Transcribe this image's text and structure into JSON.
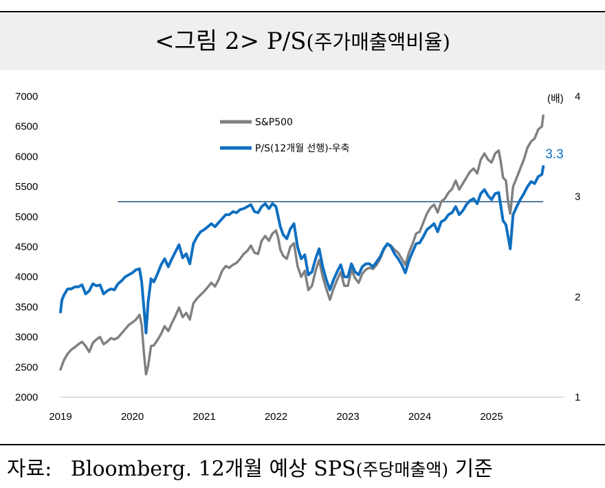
{
  "title": {
    "main": "<그림 2> P/S",
    "sub": "(주가매출액비율)"
  },
  "source": {
    "label": "자료:",
    "text": "Bloomberg. 12개월 예상 SPS",
    "sub": "(주당매출액)",
    "tail": " 기준"
  },
  "colors": {
    "sp500": "#808080",
    "ps": "#0f6fc0",
    "refline": "#1f4e79",
    "title_bg": "#efefef"
  },
  "chart_data": {
    "type": "line",
    "x_ticks": [
      "2019",
      "2020",
      "2021",
      "2022",
      "2023",
      "2024",
      "2025"
    ],
    "y_left": {
      "ticks": [
        2000,
        2500,
        3000,
        3500,
        4000,
        4500,
        5000,
        5500,
        6000,
        6500,
        7000
      ],
      "range": [
        2000,
        7000
      ]
    },
    "y_right": {
      "ticks": [
        1,
        2,
        3,
        4
      ],
      "range": [
        1,
        4
      ],
      "unit": "(배)"
    },
    "reference_line": {
      "axis": "right",
      "value": 2.95,
      "x_start": 2019.8,
      "x_end": 2025.72
    },
    "last_value_label": "3.3",
    "legend": {
      "position": "top-center"
    },
    "series": [
      {
        "name": "S&P500",
        "axis": "left",
        "color": "#808080",
        "points": [
          [
            2019.0,
            2460
          ],
          [
            2019.05,
            2620
          ],
          [
            2019.1,
            2720
          ],
          [
            2019.15,
            2790
          ],
          [
            2019.2,
            2830
          ],
          [
            2019.25,
            2880
          ],
          [
            2019.3,
            2920
          ],
          [
            2019.35,
            2850
          ],
          [
            2019.4,
            2750
          ],
          [
            2019.45,
            2900
          ],
          [
            2019.5,
            2960
          ],
          [
            2019.55,
            3000
          ],
          [
            2019.6,
            2880
          ],
          [
            2019.65,
            2920
          ],
          [
            2019.7,
            2980
          ],
          [
            2019.75,
            2960
          ],
          [
            2019.8,
            2990
          ],
          [
            2019.85,
            3060
          ],
          [
            2019.9,
            3130
          ],
          [
            2019.95,
            3200
          ],
          [
            2020.0,
            3240
          ],
          [
            2020.05,
            3290
          ],
          [
            2020.1,
            3370
          ],
          [
            2020.13,
            3200
          ],
          [
            2020.16,
            2750
          ],
          [
            2020.19,
            2380
          ],
          [
            2020.22,
            2520
          ],
          [
            2020.26,
            2850
          ],
          [
            2020.3,
            2860
          ],
          [
            2020.35,
            2950
          ],
          [
            2020.4,
            3050
          ],
          [
            2020.45,
            3180
          ],
          [
            2020.5,
            3100
          ],
          [
            2020.55,
            3230
          ],
          [
            2020.6,
            3350
          ],
          [
            2020.65,
            3490
          ],
          [
            2020.7,
            3330
          ],
          [
            2020.75,
            3400
          ],
          [
            2020.8,
            3290
          ],
          [
            2020.85,
            3560
          ],
          [
            2020.9,
            3640
          ],
          [
            2020.95,
            3700
          ],
          [
            2021.0,
            3760
          ],
          [
            2021.05,
            3830
          ],
          [
            2021.1,
            3900
          ],
          [
            2021.15,
            3840
          ],
          [
            2021.2,
            3950
          ],
          [
            2021.25,
            4100
          ],
          [
            2021.3,
            4180
          ],
          [
            2021.35,
            4150
          ],
          [
            2021.4,
            4200
          ],
          [
            2021.45,
            4230
          ],
          [
            2021.5,
            4300
          ],
          [
            2021.55,
            4380
          ],
          [
            2021.6,
            4430
          ],
          [
            2021.65,
            4520
          ],
          [
            2021.7,
            4400
          ],
          [
            2021.75,
            4380
          ],
          [
            2021.8,
            4600
          ],
          [
            2021.85,
            4680
          ],
          [
            2021.9,
            4600
          ],
          [
            2021.95,
            4720
          ],
          [
            2022.0,
            4770
          ],
          [
            2022.03,
            4650
          ],
          [
            2022.06,
            4450
          ],
          [
            2022.1,
            4350
          ],
          [
            2022.15,
            4300
          ],
          [
            2022.2,
            4500
          ],
          [
            2022.25,
            4560
          ],
          [
            2022.3,
            4180
          ],
          [
            2022.35,
            4000
          ],
          [
            2022.4,
            4100
          ],
          [
            2022.45,
            3780
          ],
          [
            2022.5,
            3850
          ],
          [
            2022.55,
            4100
          ],
          [
            2022.6,
            4280
          ],
          [
            2022.65,
            4000
          ],
          [
            2022.7,
            3800
          ],
          [
            2022.75,
            3620
          ],
          [
            2022.8,
            3800
          ],
          [
            2022.85,
            3950
          ],
          [
            2022.9,
            4080
          ],
          [
            2022.95,
            3850
          ],
          [
            2023.0,
            3850
          ],
          [
            2023.05,
            4120
          ],
          [
            2023.1,
            3980
          ],
          [
            2023.15,
            3900
          ],
          [
            2023.2,
            4050
          ],
          [
            2023.25,
            4120
          ],
          [
            2023.3,
            4150
          ],
          [
            2023.35,
            4130
          ],
          [
            2023.4,
            4200
          ],
          [
            2023.45,
            4300
          ],
          [
            2023.5,
            4450
          ],
          [
            2023.55,
            4550
          ],
          [
            2023.6,
            4520
          ],
          [
            2023.65,
            4450
          ],
          [
            2023.7,
            4400
          ],
          [
            2023.75,
            4300
          ],
          [
            2023.8,
            4200
          ],
          [
            2023.85,
            4400
          ],
          [
            2023.9,
            4550
          ],
          [
            2023.95,
            4720
          ],
          [
            2024.0,
            4750
          ],
          [
            2024.05,
            4900
          ],
          [
            2024.1,
            5050
          ],
          [
            2024.15,
            5150
          ],
          [
            2024.2,
            5200
          ],
          [
            2024.25,
            5070
          ],
          [
            2024.3,
            5250
          ],
          [
            2024.35,
            5300
          ],
          [
            2024.4,
            5400
          ],
          [
            2024.45,
            5460
          ],
          [
            2024.5,
            5600
          ],
          [
            2024.55,
            5450
          ],
          [
            2024.6,
            5550
          ],
          [
            2024.65,
            5650
          ],
          [
            2024.7,
            5750
          ],
          [
            2024.75,
            5800
          ],
          [
            2024.8,
            5720
          ],
          [
            2024.85,
            5950
          ],
          [
            2024.9,
            6050
          ],
          [
            2024.95,
            5950
          ],
          [
            2025.0,
            5900
          ],
          [
            2025.05,
            6050
          ],
          [
            2025.1,
            6100
          ],
          [
            2025.13,
            5900
          ],
          [
            2025.16,
            5650
          ],
          [
            2025.2,
            5600
          ],
          [
            2025.23,
            5250
          ],
          [
            2025.26,
            5050
          ],
          [
            2025.3,
            5500
          ],
          [
            2025.35,
            5650
          ],
          [
            2025.4,
            5800
          ],
          [
            2025.45,
            5950
          ],
          [
            2025.5,
            6150
          ],
          [
            2025.55,
            6250
          ],
          [
            2025.6,
            6300
          ],
          [
            2025.65,
            6450
          ],
          [
            2025.7,
            6500
          ],
          [
            2025.72,
            6680
          ]
        ]
      },
      {
        "name": "P/S(12개월 선행)-우축",
        "axis": "right",
        "color": "#0f6fc0",
        "points": [
          [
            2019.0,
            1.85
          ],
          [
            2019.02,
            1.97
          ],
          [
            2019.05,
            2.02
          ],
          [
            2019.1,
            2.08
          ],
          [
            2019.15,
            2.08
          ],
          [
            2019.2,
            2.1
          ],
          [
            2019.25,
            2.1
          ],
          [
            2019.3,
            2.12
          ],
          [
            2019.35,
            2.03
          ],
          [
            2019.4,
            2.06
          ],
          [
            2019.45,
            2.13
          ],
          [
            2019.5,
            2.11
          ],
          [
            2019.55,
            2.12
          ],
          [
            2019.6,
            2.03
          ],
          [
            2019.65,
            2.06
          ],
          [
            2019.7,
            2.08
          ],
          [
            2019.75,
            2.07
          ],
          [
            2019.8,
            2.13
          ],
          [
            2019.85,
            2.16
          ],
          [
            2019.9,
            2.2
          ],
          [
            2019.95,
            2.22
          ],
          [
            2020.0,
            2.24
          ],
          [
            2020.05,
            2.27
          ],
          [
            2020.1,
            2.28
          ],
          [
            2020.13,
            2.15
          ],
          [
            2020.16,
            1.9
          ],
          [
            2020.19,
            1.64
          ],
          [
            2020.22,
            1.95
          ],
          [
            2020.26,
            2.18
          ],
          [
            2020.3,
            2.15
          ],
          [
            2020.35,
            2.23
          ],
          [
            2020.4,
            2.32
          ],
          [
            2020.45,
            2.38
          ],
          [
            2020.5,
            2.3
          ],
          [
            2020.55,
            2.38
          ],
          [
            2020.6,
            2.45
          ],
          [
            2020.65,
            2.52
          ],
          [
            2020.7,
            2.39
          ],
          [
            2020.75,
            2.43
          ],
          [
            2020.8,
            2.33
          ],
          [
            2020.85,
            2.53
          ],
          [
            2020.9,
            2.6
          ],
          [
            2020.95,
            2.65
          ],
          [
            2021.0,
            2.67
          ],
          [
            2021.05,
            2.7
          ],
          [
            2021.1,
            2.73
          ],
          [
            2021.15,
            2.7
          ],
          [
            2021.2,
            2.74
          ],
          [
            2021.25,
            2.78
          ],
          [
            2021.3,
            2.82
          ],
          [
            2021.35,
            2.82
          ],
          [
            2021.4,
            2.85
          ],
          [
            2021.45,
            2.84
          ],
          [
            2021.5,
            2.87
          ],
          [
            2021.55,
            2.88
          ],
          [
            2021.6,
            2.9
          ],
          [
            2021.65,
            2.92
          ],
          [
            2021.7,
            2.85
          ],
          [
            2021.75,
            2.84
          ],
          [
            2021.8,
            2.9
          ],
          [
            2021.85,
            2.93
          ],
          [
            2021.9,
            2.88
          ],
          [
            2021.95,
            2.93
          ],
          [
            2022.0,
            2.9
          ],
          [
            2022.03,
            2.8
          ],
          [
            2022.06,
            2.7
          ],
          [
            2022.1,
            2.62
          ],
          [
            2022.15,
            2.58
          ],
          [
            2022.2,
            2.68
          ],
          [
            2022.25,
            2.73
          ],
          [
            2022.3,
            2.5
          ],
          [
            2022.35,
            2.38
          ],
          [
            2022.4,
            2.42
          ],
          [
            2022.45,
            2.22
          ],
          [
            2022.5,
            2.25
          ],
          [
            2022.55,
            2.38
          ],
          [
            2022.6,
            2.48
          ],
          [
            2022.65,
            2.3
          ],
          [
            2022.7,
            2.17
          ],
          [
            2022.75,
            2.07
          ],
          [
            2022.8,
            2.17
          ],
          [
            2022.85,
            2.25
          ],
          [
            2022.9,
            2.32
          ],
          [
            2022.95,
            2.2
          ],
          [
            2023.0,
            2.2
          ],
          [
            2023.05,
            2.33
          ],
          [
            2023.1,
            2.25
          ],
          [
            2023.15,
            2.22
          ],
          [
            2023.2,
            2.3
          ],
          [
            2023.25,
            2.33
          ],
          [
            2023.3,
            2.33
          ],
          [
            2023.35,
            2.3
          ],
          [
            2023.4,
            2.35
          ],
          [
            2023.45,
            2.4
          ],
          [
            2023.5,
            2.48
          ],
          [
            2023.55,
            2.53
          ],
          [
            2023.6,
            2.5
          ],
          [
            2023.65,
            2.43
          ],
          [
            2023.7,
            2.38
          ],
          [
            2023.75,
            2.32
          ],
          [
            2023.8,
            2.24
          ],
          [
            2023.85,
            2.36
          ],
          [
            2023.9,
            2.45
          ],
          [
            2023.95,
            2.53
          ],
          [
            2024.0,
            2.54
          ],
          [
            2024.05,
            2.6
          ],
          [
            2024.1,
            2.67
          ],
          [
            2024.15,
            2.7
          ],
          [
            2024.2,
            2.73
          ],
          [
            2024.25,
            2.65
          ],
          [
            2024.3,
            2.75
          ],
          [
            2024.35,
            2.77
          ],
          [
            2024.4,
            2.82
          ],
          [
            2024.45,
            2.84
          ],
          [
            2024.5,
            2.9
          ],
          [
            2024.55,
            2.82
          ],
          [
            2024.6,
            2.86
          ],
          [
            2024.65,
            2.92
          ],
          [
            2024.7,
            2.96
          ],
          [
            2024.75,
            2.98
          ],
          [
            2024.8,
            2.93
          ],
          [
            2024.85,
            3.03
          ],
          [
            2024.9,
            3.07
          ],
          [
            2024.95,
            3.01
          ],
          [
            2025.0,
            2.97
          ],
          [
            2025.05,
            3.03
          ],
          [
            2025.1,
            3.04
          ],
          [
            2025.13,
            2.9
          ],
          [
            2025.16,
            2.76
          ],
          [
            2025.2,
            2.72
          ],
          [
            2025.23,
            2.6
          ],
          [
            2025.26,
            2.48
          ],
          [
            2025.3,
            2.82
          ],
          [
            2025.35,
            2.9
          ],
          [
            2025.4,
            2.97
          ],
          [
            2025.45,
            3.03
          ],
          [
            2025.5,
            3.1
          ],
          [
            2025.55,
            3.15
          ],
          [
            2025.6,
            3.13
          ],
          [
            2025.65,
            3.2
          ],
          [
            2025.7,
            3.22
          ],
          [
            2025.72,
            3.3
          ]
        ]
      }
    ]
  }
}
